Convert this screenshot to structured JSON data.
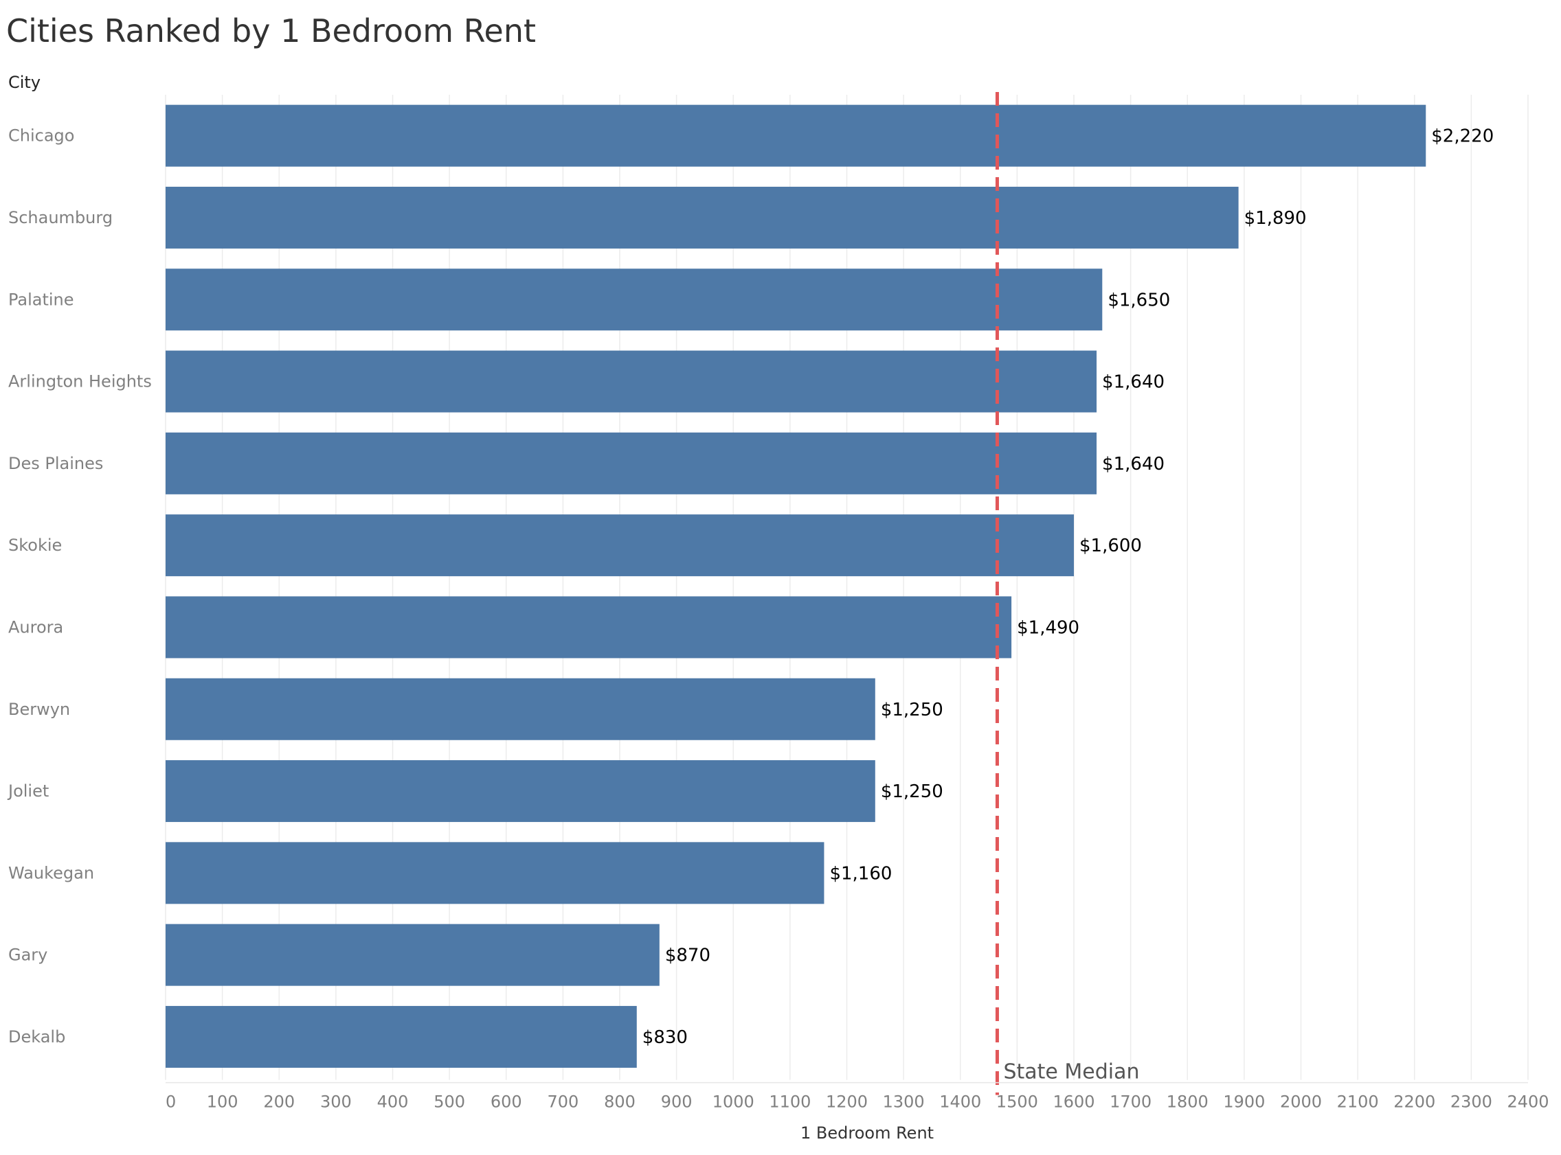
{
  "chart_data": {
    "type": "bar",
    "orientation": "horizontal",
    "title": "Cities Ranked by 1 Bedroom Rent",
    "row_header": "City",
    "xlabel": "1 Bedroom Rent",
    "categories": [
      "Chicago",
      "Schaumburg",
      "Palatine",
      "Arlington Heights",
      "Des Plaines",
      "Skokie",
      "Aurora",
      "Berwyn",
      "Joliet",
      "Waukegan",
      "Gary",
      "Dekalb"
    ],
    "values": [
      2220,
      1890,
      1650,
      1640,
      1640,
      1600,
      1490,
      1250,
      1250,
      1160,
      870,
      830
    ],
    "value_labels": [
      "$2,220",
      "$1,890",
      "$1,650",
      "$1,640",
      "$1,640",
      "$1,600",
      "$1,490",
      "$1,250",
      "$1,250",
      "$1,160",
      "$870",
      "$830"
    ],
    "xlim": [
      0,
      2400
    ],
    "xticks": [
      0,
      100,
      200,
      300,
      400,
      500,
      600,
      700,
      800,
      900,
      1000,
      1100,
      1200,
      1300,
      1400,
      1500,
      1600,
      1700,
      1800,
      1900,
      2000,
      2100,
      2200,
      2300,
      2400
    ],
    "reference_line": {
      "label": "State Median",
      "value": 1465,
      "style": "dashed",
      "color": "#e15759"
    },
    "bar_color": "#4e79a7",
    "grid": "vertical"
  }
}
